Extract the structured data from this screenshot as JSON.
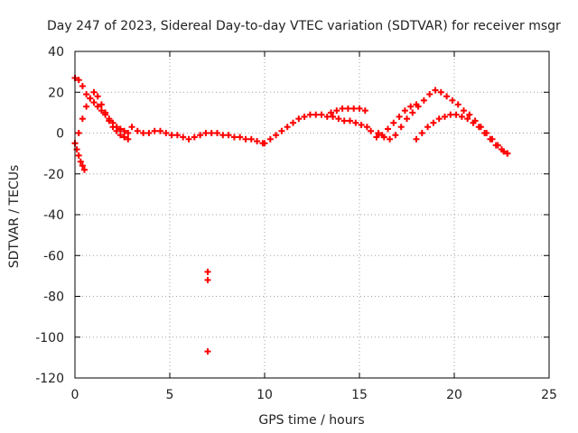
{
  "chart_data": {
    "type": "scatter",
    "title": "Day 247 of 2023, Sidereal Day-to-day VTEC variation (SDTVAR) for receiver msgr",
    "xlabel": "GPS time / hours",
    "ylabel": "SDTVAR / TECUs",
    "xlim": [
      0,
      25
    ],
    "ylim": [
      -120,
      40
    ],
    "xticks": [
      "0",
      "5",
      "10",
      "15",
      "20",
      "25"
    ],
    "yticks": [
      "40",
      "20",
      "0",
      "-20",
      "-40",
      "-60",
      "-80",
      "-100",
      "-120"
    ],
    "grid": true,
    "legend": "none",
    "marker": "+",
    "color": "#ff0000",
    "series": [
      {
        "name": "SDTVAR",
        "x": [
          0.0,
          0.2,
          0.4,
          0.6,
          0.8,
          1.0,
          1.2,
          1.4,
          1.6,
          1.8,
          2.0,
          2.2,
          2.4,
          2.6,
          2.8,
          0.0,
          0.2,
          0.4,
          0.6,
          0.8,
          1.0,
          1.2,
          1.4,
          1.6,
          1.8,
          2.0,
          2.2,
          2.4,
          2.6,
          2.8,
          0.0,
          0.1,
          0.2,
          0.3,
          0.4,
          0.5,
          3.0,
          3.3,
          3.6,
          3.9,
          4.2,
          4.5,
          4.8,
          5.1,
          5.4,
          5.7,
          6.0,
          6.3,
          6.6,
          6.9,
          7.0,
          7.0,
          7.0,
          7.2,
          7.5,
          7.8,
          8.1,
          8.4,
          8.7,
          9.0,
          9.3,
          9.6,
          9.9,
          10.0,
          10.3,
          10.6,
          10.9,
          11.2,
          11.5,
          11.8,
          12.1,
          12.4,
          12.7,
          13.0,
          13.3,
          13.6,
          13.9,
          14.2,
          14.5,
          14.8,
          15.1,
          15.4,
          13.5,
          13.8,
          14.1,
          14.4,
          14.7,
          15.0,
          15.3,
          15.6,
          15.9,
          16.2,
          16.5,
          16.8,
          17.1,
          17.4,
          17.7,
          18.0,
          16.0,
          16.3,
          16.6,
          16.9,
          17.2,
          17.5,
          17.8,
          18.1,
          18.4,
          18.7,
          19.0,
          19.3,
          19.6,
          19.9,
          20.2,
          20.5,
          20.8,
          21.1,
          21.4,
          21.7,
          22.0,
          22.3,
          22.6,
          22.8,
          18.0,
          18.3,
          18.6,
          18.9,
          19.2,
          19.5,
          19.8,
          20.1,
          20.4,
          20.7,
          21.0,
          21.3,
          21.6,
          21.9,
          22.2,
          22.5,
          22.8
        ],
        "y": [
          27,
          26,
          23,
          19,
          17,
          15,
          13,
          11,
          9,
          7,
          5,
          3,
          2,
          1,
          0,
          -5,
          0,
          7,
          13,
          17,
          20,
          18,
          14,
          10,
          6,
          3,
          1,
          -1,
          -2,
          -3,
          -5,
          -8,
          -11,
          -14,
          -16,
          -18,
          3,
          1,
          0,
          0,
          1,
          1,
          0,
          -1,
          -1,
          -2,
          -3,
          -2,
          -1,
          0,
          -68,
          -72,
          -107,
          0,
          0,
          -1,
          -1,
          -2,
          -2,
          -3,
          -3,
          -4,
          -5,
          -5,
          -3,
          -1,
          1,
          3,
          5,
          7,
          8,
          9,
          9,
          9,
          8,
          8,
          7,
          6,
          6,
          5,
          4,
          3,
          10,
          11,
          12,
          12,
          12,
          12,
          11,
          1,
          -2,
          -1,
          2,
          5,
          8,
          11,
          13,
          14,
          0,
          -2,
          -3,
          -1,
          3,
          7,
          10,
          13,
          16,
          19,
          21,
          20,
          18,
          16,
          14,
          11,
          9,
          6,
          3,
          0,
          -3,
          -6,
          -9,
          -10,
          -3,
          0,
          3,
          5,
          7,
          8,
          9,
          9,
          8,
          7,
          5,
          3,
          0,
          -3,
          -6,
          -8,
          -10
        ]
      }
    ]
  }
}
